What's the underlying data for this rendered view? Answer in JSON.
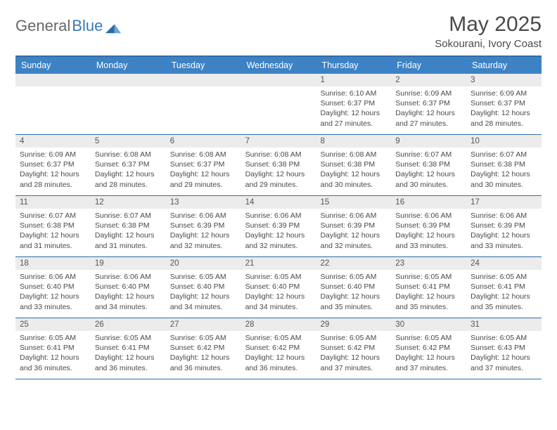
{
  "brand": {
    "part1": "General",
    "part2": "Blue"
  },
  "title": "May 2025",
  "subtitle": "Sokourani, Ivory Coast",
  "colors": {
    "header_bg": "#3d82c4",
    "header_text": "#ffffff",
    "border": "#2f6fa8",
    "daynum_bg": "#ececec",
    "body_text": "#4a4a4a",
    "brand_gray": "#666666",
    "brand_blue": "#3a7ab8",
    "background": "#ffffff"
  },
  "typography": {
    "title_fontsize": 30,
    "subtitle_fontsize": 15,
    "dayhead_fontsize": 12.5,
    "body_fontsize": 10.5
  },
  "day_names": [
    "Sunday",
    "Monday",
    "Tuesday",
    "Wednesday",
    "Thursday",
    "Friday",
    "Saturday"
  ],
  "weeks": [
    [
      {
        "empty": true
      },
      {
        "empty": true
      },
      {
        "empty": true
      },
      {
        "empty": true
      },
      {
        "num": "1",
        "sunrise": "Sunrise: 6:10 AM",
        "sunset": "Sunset: 6:37 PM",
        "dl1": "Daylight: 12 hours",
        "dl2": "and 27 minutes."
      },
      {
        "num": "2",
        "sunrise": "Sunrise: 6:09 AM",
        "sunset": "Sunset: 6:37 PM",
        "dl1": "Daylight: 12 hours",
        "dl2": "and 27 minutes."
      },
      {
        "num": "3",
        "sunrise": "Sunrise: 6:09 AM",
        "sunset": "Sunset: 6:37 PM",
        "dl1": "Daylight: 12 hours",
        "dl2": "and 28 minutes."
      }
    ],
    [
      {
        "num": "4",
        "sunrise": "Sunrise: 6:09 AM",
        "sunset": "Sunset: 6:37 PM",
        "dl1": "Daylight: 12 hours",
        "dl2": "and 28 minutes."
      },
      {
        "num": "5",
        "sunrise": "Sunrise: 6:08 AM",
        "sunset": "Sunset: 6:37 PM",
        "dl1": "Daylight: 12 hours",
        "dl2": "and 28 minutes."
      },
      {
        "num": "6",
        "sunrise": "Sunrise: 6:08 AM",
        "sunset": "Sunset: 6:37 PM",
        "dl1": "Daylight: 12 hours",
        "dl2": "and 29 minutes."
      },
      {
        "num": "7",
        "sunrise": "Sunrise: 6:08 AM",
        "sunset": "Sunset: 6:38 PM",
        "dl1": "Daylight: 12 hours",
        "dl2": "and 29 minutes."
      },
      {
        "num": "8",
        "sunrise": "Sunrise: 6:08 AM",
        "sunset": "Sunset: 6:38 PM",
        "dl1": "Daylight: 12 hours",
        "dl2": "and 30 minutes."
      },
      {
        "num": "9",
        "sunrise": "Sunrise: 6:07 AM",
        "sunset": "Sunset: 6:38 PM",
        "dl1": "Daylight: 12 hours",
        "dl2": "and 30 minutes."
      },
      {
        "num": "10",
        "sunrise": "Sunrise: 6:07 AM",
        "sunset": "Sunset: 6:38 PM",
        "dl1": "Daylight: 12 hours",
        "dl2": "and 30 minutes."
      }
    ],
    [
      {
        "num": "11",
        "sunrise": "Sunrise: 6:07 AM",
        "sunset": "Sunset: 6:38 PM",
        "dl1": "Daylight: 12 hours",
        "dl2": "and 31 minutes."
      },
      {
        "num": "12",
        "sunrise": "Sunrise: 6:07 AM",
        "sunset": "Sunset: 6:38 PM",
        "dl1": "Daylight: 12 hours",
        "dl2": "and 31 minutes."
      },
      {
        "num": "13",
        "sunrise": "Sunrise: 6:06 AM",
        "sunset": "Sunset: 6:39 PM",
        "dl1": "Daylight: 12 hours",
        "dl2": "and 32 minutes."
      },
      {
        "num": "14",
        "sunrise": "Sunrise: 6:06 AM",
        "sunset": "Sunset: 6:39 PM",
        "dl1": "Daylight: 12 hours",
        "dl2": "and 32 minutes."
      },
      {
        "num": "15",
        "sunrise": "Sunrise: 6:06 AM",
        "sunset": "Sunset: 6:39 PM",
        "dl1": "Daylight: 12 hours",
        "dl2": "and 32 minutes."
      },
      {
        "num": "16",
        "sunrise": "Sunrise: 6:06 AM",
        "sunset": "Sunset: 6:39 PM",
        "dl1": "Daylight: 12 hours",
        "dl2": "and 33 minutes."
      },
      {
        "num": "17",
        "sunrise": "Sunrise: 6:06 AM",
        "sunset": "Sunset: 6:39 PM",
        "dl1": "Daylight: 12 hours",
        "dl2": "and 33 minutes."
      }
    ],
    [
      {
        "num": "18",
        "sunrise": "Sunrise: 6:06 AM",
        "sunset": "Sunset: 6:40 PM",
        "dl1": "Daylight: 12 hours",
        "dl2": "and 33 minutes."
      },
      {
        "num": "19",
        "sunrise": "Sunrise: 6:06 AM",
        "sunset": "Sunset: 6:40 PM",
        "dl1": "Daylight: 12 hours",
        "dl2": "and 34 minutes."
      },
      {
        "num": "20",
        "sunrise": "Sunrise: 6:05 AM",
        "sunset": "Sunset: 6:40 PM",
        "dl1": "Daylight: 12 hours",
        "dl2": "and 34 minutes."
      },
      {
        "num": "21",
        "sunrise": "Sunrise: 6:05 AM",
        "sunset": "Sunset: 6:40 PM",
        "dl1": "Daylight: 12 hours",
        "dl2": "and 34 minutes."
      },
      {
        "num": "22",
        "sunrise": "Sunrise: 6:05 AM",
        "sunset": "Sunset: 6:40 PM",
        "dl1": "Daylight: 12 hours",
        "dl2": "and 35 minutes."
      },
      {
        "num": "23",
        "sunrise": "Sunrise: 6:05 AM",
        "sunset": "Sunset: 6:41 PM",
        "dl1": "Daylight: 12 hours",
        "dl2": "and 35 minutes."
      },
      {
        "num": "24",
        "sunrise": "Sunrise: 6:05 AM",
        "sunset": "Sunset: 6:41 PM",
        "dl1": "Daylight: 12 hours",
        "dl2": "and 35 minutes."
      }
    ],
    [
      {
        "num": "25",
        "sunrise": "Sunrise: 6:05 AM",
        "sunset": "Sunset: 6:41 PM",
        "dl1": "Daylight: 12 hours",
        "dl2": "and 36 minutes."
      },
      {
        "num": "26",
        "sunrise": "Sunrise: 6:05 AM",
        "sunset": "Sunset: 6:41 PM",
        "dl1": "Daylight: 12 hours",
        "dl2": "and 36 minutes."
      },
      {
        "num": "27",
        "sunrise": "Sunrise: 6:05 AM",
        "sunset": "Sunset: 6:42 PM",
        "dl1": "Daylight: 12 hours",
        "dl2": "and 36 minutes."
      },
      {
        "num": "28",
        "sunrise": "Sunrise: 6:05 AM",
        "sunset": "Sunset: 6:42 PM",
        "dl1": "Daylight: 12 hours",
        "dl2": "and 36 minutes."
      },
      {
        "num": "29",
        "sunrise": "Sunrise: 6:05 AM",
        "sunset": "Sunset: 6:42 PM",
        "dl1": "Daylight: 12 hours",
        "dl2": "and 37 minutes."
      },
      {
        "num": "30",
        "sunrise": "Sunrise: 6:05 AM",
        "sunset": "Sunset: 6:42 PM",
        "dl1": "Daylight: 12 hours",
        "dl2": "and 37 minutes."
      },
      {
        "num": "31",
        "sunrise": "Sunrise: 6:05 AM",
        "sunset": "Sunset: 6:43 PM",
        "dl1": "Daylight: 12 hours",
        "dl2": "and 37 minutes."
      }
    ]
  ]
}
